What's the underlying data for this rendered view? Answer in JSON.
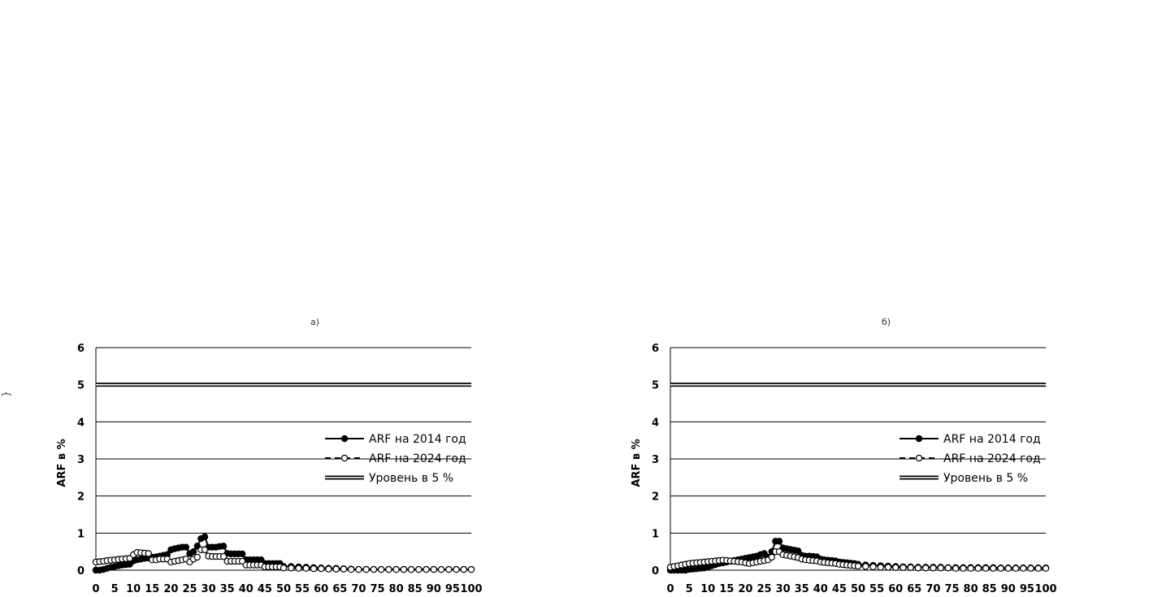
{
  "side_mark": "{",
  "chart_data": [
    {
      "panel_tag": "а)",
      "type": "line",
      "title": "",
      "xlabel": "",
      "ylabel": "ARF в %",
      "xlim": [
        0,
        100
      ],
      "ylim": [
        0,
        6
      ],
      "x_ticks": [
        0,
        5,
        10,
        15,
        20,
        25,
        30,
        35,
        40,
        45,
        50,
        55,
        60,
        65,
        70,
        75,
        80,
        85,
        90,
        95,
        100
      ],
      "y_ticks": [
        0,
        1,
        2,
        3,
        4,
        5,
        6
      ],
      "grid": true,
      "legend_position": "right",
      "series": [
        {
          "name": "ARF на 2014 год",
          "color": "#000000",
          "marker": "filled-circle",
          "line": "solid",
          "x": [
            0,
            1,
            2,
            3,
            4,
            5,
            6,
            7,
            8,
            9,
            10,
            11,
            12,
            13,
            14,
            15,
            16,
            17,
            18,
            19,
            20,
            21,
            22,
            23,
            24,
            25,
            26,
            27,
            28,
            29,
            30,
            31,
            32,
            33,
            34,
            35,
            36,
            37,
            38,
            39,
            40,
            41,
            42,
            43,
            44,
            45,
            46,
            47,
            48,
            49,
            50,
            52,
            54,
            56,
            58,
            60,
            62,
            64,
            66,
            68,
            70,
            72,
            74,
            76,
            78,
            80,
            82,
            84,
            86,
            88,
            90,
            92,
            94,
            96,
            98,
            100
          ],
          "y": [
            0,
            0,
            0.02,
            0.05,
            0.08,
            0.1,
            0.12,
            0.14,
            0.15,
            0.16,
            0.25,
            0.28,
            0.3,
            0.32,
            0.33,
            0.35,
            0.36,
            0.38,
            0.4,
            0.42,
            0.55,
            0.58,
            0.6,
            0.62,
            0.62,
            0.45,
            0.5,
            0.65,
            0.85,
            0.9,
            0.62,
            0.62,
            0.62,
            0.64,
            0.65,
            0.45,
            0.44,
            0.44,
            0.44,
            0.44,
            0.28,
            0.28,
            0.28,
            0.28,
            0.28,
            0.18,
            0.18,
            0.18,
            0.18,
            0.18,
            0.1,
            0.1,
            0.09,
            0.08,
            0.07,
            0.06,
            0.05,
            0.05,
            0.04,
            0.03,
            0.02,
            0.02,
            0.02,
            0.02,
            0.02,
            0.02,
            0.02,
            0.02,
            0.02,
            0.02,
            0.02,
            0.02,
            0.02,
            0.02,
            0.02,
            0.02
          ]
        },
        {
          "name": "ARF на 2024 год",
          "color": "#000000",
          "marker": "open-circle",
          "line": "dashed",
          "x": [
            0,
            1,
            2,
            3,
            4,
            5,
            6,
            7,
            8,
            9,
            10,
            11,
            12,
            13,
            14,
            15,
            16,
            17,
            18,
            19,
            20,
            21,
            22,
            23,
            24,
            25,
            26,
            27,
            28,
            29,
            30,
            31,
            32,
            33,
            34,
            35,
            36,
            37,
            38,
            39,
            40,
            41,
            42,
            43,
            44,
            45,
            46,
            47,
            48,
            49,
            50,
            52,
            54,
            56,
            58,
            60,
            62,
            64,
            66,
            68,
            70,
            72,
            74,
            76,
            78,
            80,
            82,
            84,
            86,
            88,
            90,
            92,
            94,
            96,
            98,
            100
          ],
          "y": [
            0.22,
            0.23,
            0.24,
            0.26,
            0.27,
            0.28,
            0.29,
            0.3,
            0.31,
            0.32,
            0.42,
            0.48,
            0.47,
            0.46,
            0.45,
            0.28,
            0.28,
            0.3,
            0.3,
            0.3,
            0.22,
            0.24,
            0.26,
            0.28,
            0.3,
            0.22,
            0.3,
            0.35,
            0.55,
            0.55,
            0.38,
            0.37,
            0.37,
            0.37,
            0.37,
            0.24,
            0.24,
            0.24,
            0.24,
            0.24,
            0.14,
            0.14,
            0.14,
            0.14,
            0.14,
            0.09,
            0.09,
            0.09,
            0.09,
            0.09,
            0.06,
            0.06,
            0.05,
            0.05,
            0.04,
            0.04,
            0.03,
            0.03,
            0.03,
            0.02,
            0.02,
            0.02,
            0.02,
            0.02,
            0.02,
            0.02,
            0.02,
            0.02,
            0.02,
            0.02,
            0.02,
            0.02,
            0.02,
            0.02,
            0.02,
            0.02
          ]
        },
        {
          "name": "Уровень в 5 %",
          "color": "#000000",
          "marker": "none",
          "line": "double",
          "x": [
            0,
            100
          ],
          "y": [
            5,
            5
          ]
        }
      ]
    },
    {
      "panel_tag": "б)",
      "type": "line",
      "title": "",
      "xlabel": "",
      "ylabel": "ARF в %",
      "xlim": [
        0,
        100
      ],
      "ylim": [
        0,
        6
      ],
      "x_ticks": [
        0,
        5,
        10,
        15,
        20,
        25,
        30,
        35,
        40,
        45,
        50,
        55,
        60,
        65,
        70,
        75,
        80,
        85,
        90,
        95,
        100
      ],
      "y_ticks": [
        0,
        1,
        2,
        3,
        4,
        5,
        6
      ],
      "grid": true,
      "legend_position": "right",
      "series": [
        {
          "name": "ARF на 2014 год",
          "color": "#000000",
          "marker": "filled-circle",
          "line": "solid",
          "x": [
            0,
            1,
            2,
            3,
            4,
            5,
            6,
            7,
            8,
            9,
            10,
            11,
            12,
            13,
            14,
            15,
            16,
            17,
            18,
            19,
            20,
            21,
            22,
            23,
            24,
            25,
            26,
            27,
            28,
            29,
            30,
            31,
            32,
            33,
            34,
            35,
            36,
            37,
            38,
            39,
            40,
            41,
            42,
            43,
            44,
            45,
            46,
            47,
            48,
            49,
            50,
            52,
            54,
            56,
            58,
            60,
            62,
            64,
            66,
            68,
            70,
            72,
            74,
            76,
            78,
            80,
            82,
            84,
            86,
            88,
            90,
            92,
            94,
            96,
            98,
            100
          ],
          "y": [
            0,
            0,
            0,
            0,
            0,
            0.02,
            0.03,
            0.04,
            0.05,
            0.06,
            0.08,
            0.12,
            0.15,
            0.18,
            0.2,
            0.22,
            0.24,
            0.26,
            0.28,
            0.3,
            0.32,
            0.34,
            0.36,
            0.38,
            0.42,
            0.45,
            0.35,
            0.5,
            0.78,
            0.78,
            0.6,
            0.58,
            0.56,
            0.54,
            0.52,
            0.4,
            0.38,
            0.38,
            0.37,
            0.36,
            0.3,
            0.28,
            0.27,
            0.26,
            0.25,
            0.22,
            0.21,
            0.2,
            0.19,
            0.18,
            0.16,
            0.14,
            0.13,
            0.12,
            0.11,
            0.1,
            0.09,
            0.09,
            0.08,
            0.08,
            0.08,
            0.08,
            0.07,
            0.07,
            0.07,
            0.07,
            0.07,
            0.07,
            0.07,
            0.06,
            0.06,
            0.06,
            0.06,
            0.06,
            0.06,
            0.06
          ]
        },
        {
          "name": "ARF на 2024 год",
          "color": "#000000",
          "marker": "open-circle",
          "line": "dashed",
          "x": [
            0,
            1,
            2,
            3,
            4,
            5,
            6,
            7,
            8,
            9,
            10,
            11,
            12,
            13,
            14,
            15,
            16,
            17,
            18,
            19,
            20,
            21,
            22,
            23,
            24,
            25,
            26,
            27,
            28,
            29,
            30,
            31,
            32,
            33,
            34,
            35,
            36,
            37,
            38,
            39,
            40,
            41,
            42,
            43,
            44,
            45,
            46,
            47,
            48,
            49,
            50,
            52,
            54,
            56,
            58,
            60,
            62,
            64,
            66,
            68,
            70,
            72,
            74,
            76,
            78,
            80,
            82,
            84,
            86,
            88,
            90,
            92,
            94,
            96,
            98,
            100
          ],
          "y": [
            0.08,
            0.1,
            0.12,
            0.14,
            0.16,
            0.18,
            0.19,
            0.2,
            0.21,
            0.22,
            0.23,
            0.24,
            0.25,
            0.26,
            0.27,
            0.26,
            0.25,
            0.24,
            0.23,
            0.22,
            0.2,
            0.18,
            0.2,
            0.22,
            0.24,
            0.26,
            0.28,
            0.35,
            0.5,
            0.5,
            0.42,
            0.4,
            0.38,
            0.36,
            0.34,
            0.3,
            0.28,
            0.27,
            0.26,
            0.25,
            0.22,
            0.21,
            0.2,
            0.19,
            0.18,
            0.16,
            0.15,
            0.14,
            0.13,
            0.12,
            0.11,
            0.1,
            0.09,
            0.08,
            0.08,
            0.07,
            0.07,
            0.07,
            0.06,
            0.06,
            0.06,
            0.06,
            0.06,
            0.05,
            0.05,
            0.05,
            0.05,
            0.05,
            0.05,
            0.05,
            0.05,
            0.05,
            0.05,
            0.05,
            0.05,
            0.05
          ]
        },
        {
          "name": "Уровень в 5 %",
          "color": "#000000",
          "marker": "none",
          "line": "double",
          "x": [
            0,
            100
          ],
          "y": [
            5,
            5
          ]
        }
      ]
    }
  ]
}
